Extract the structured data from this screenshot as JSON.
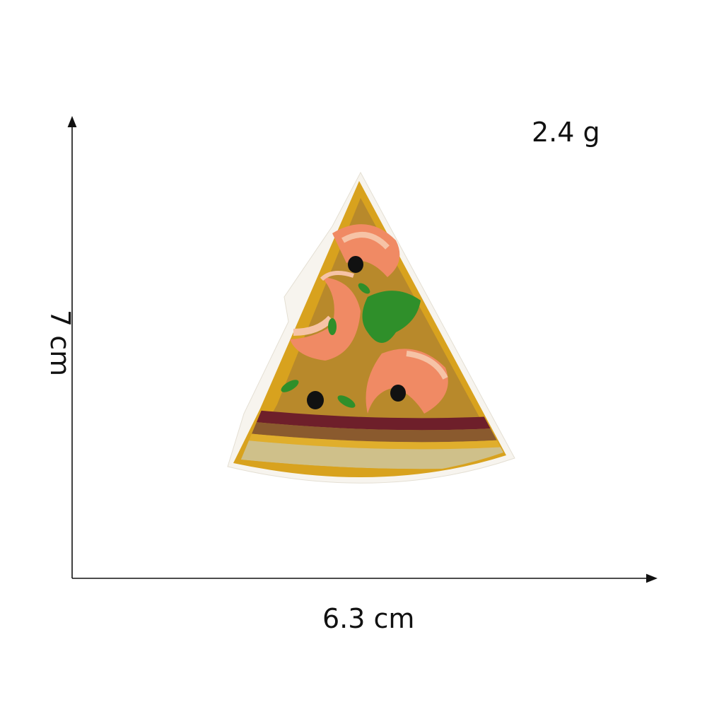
{
  "labels": {
    "weight": "2.4 g",
    "width": "6.3 cm",
    "height": "7 cm"
  },
  "product": {
    "depicts": "embroidered pizza slice patch with shrimp, olives and herbs"
  },
  "colors": {
    "crust_gold": "#d8a21e",
    "sauce_base": "#b8892b",
    "shrimp": "#f08a64",
    "shrimp_light": "#f6c3a6",
    "olive": "#111111",
    "herb": "#2f8f2a",
    "band_brown": "#8a5a2e",
    "band_tan": "#cfc08a",
    "band_maroon": "#6e1f2a",
    "backing": "#f7f4ee"
  }
}
